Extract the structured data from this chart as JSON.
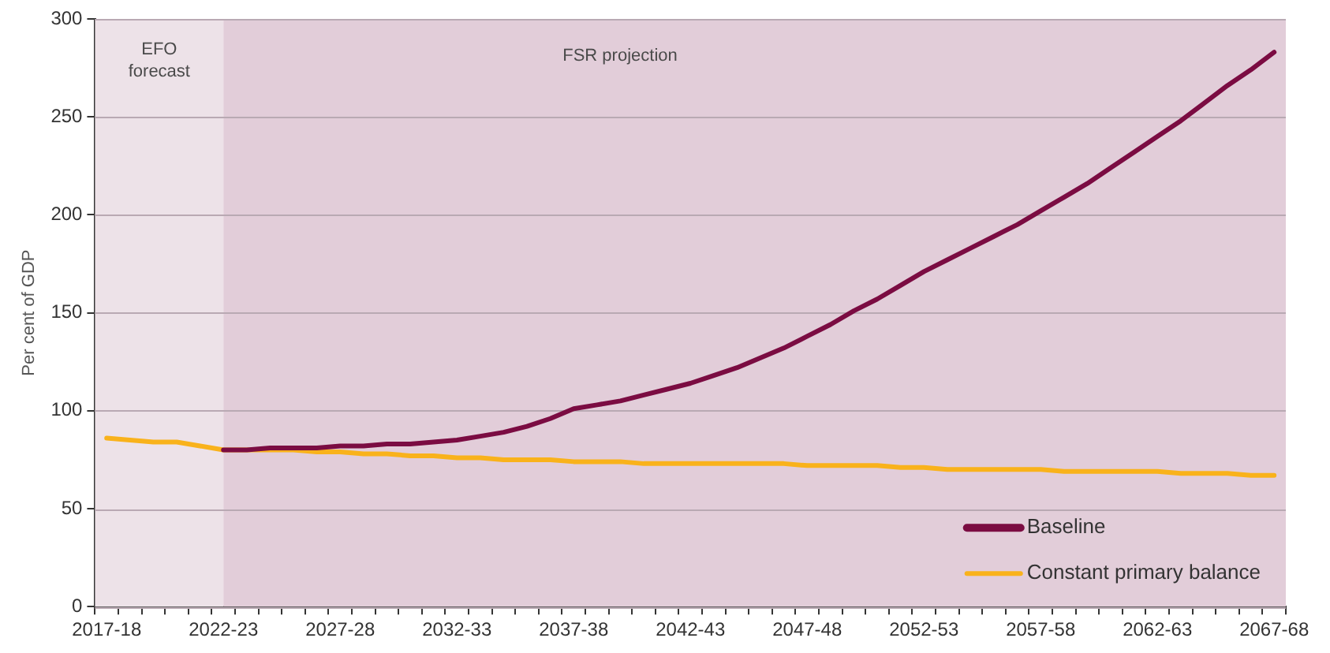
{
  "chart_data": {
    "type": "line",
    "ylabel": "Per cent of GDP",
    "categories": [
      "2017-18",
      null,
      null,
      null,
      null,
      "2022-23",
      null,
      null,
      null,
      null,
      "2027-28",
      null,
      null,
      null,
      null,
      "2032-33",
      null,
      null,
      null,
      null,
      "2037-38",
      null,
      null,
      null,
      null,
      "2042-43",
      null,
      null,
      null,
      null,
      "2047-48",
      null,
      null,
      null,
      null,
      "2052-53",
      null,
      null,
      null,
      null,
      "2057-58",
      null,
      null,
      null,
      null,
      "2062-63",
      null,
      null,
      null,
      null,
      "2067-68"
    ],
    "series": [
      {
        "name": "Baseline",
        "color": "#7b0c42",
        "values": [
          null,
          null,
          null,
          null,
          null,
          80,
          80,
          81,
          81,
          81,
          82,
          82,
          83,
          83,
          84,
          85,
          87,
          89,
          92,
          96,
          101,
          103,
          105,
          108,
          111,
          114,
          118,
          122,
          127,
          132,
          138,
          144,
          151,
          157,
          164,
          171,
          177,
          183,
          189,
          195,
          202,
          209,
          216,
          224,
          232,
          240,
          248,
          257,
          266,
          274,
          283
        ]
      },
      {
        "name": "Constant primary balance",
        "color": "#f9b21b",
        "values": [
          86,
          85,
          84,
          84,
          82,
          80,
          80,
          80,
          80,
          79,
          79,
          78,
          78,
          77,
          77,
          76,
          76,
          75,
          75,
          75,
          74,
          74,
          74,
          73,
          73,
          73,
          73,
          73,
          73,
          73,
          72,
          72,
          72,
          72,
          71,
          71,
          70,
          70,
          70,
          70,
          70,
          69,
          69,
          69,
          69,
          69,
          68,
          68,
          68,
          67,
          67
        ]
      }
    ],
    "ylim": [
      0,
      300
    ],
    "yticks": [
      0,
      50,
      100,
      150,
      200,
      250,
      300
    ],
    "grid": "y",
    "legend": "bottom right",
    "marker": "none",
    "line_style": "solid",
    "bands": [
      {
        "axis": "x",
        "from": "2017-18",
        "to": "2022-23",
        "label": "EFO forecast",
        "color": "#ede2e8"
      },
      {
        "axis": "x",
        "from": "2022-23",
        "to": "2067-68",
        "label": "FSR projection",
        "color": "#e2cdd9"
      }
    ]
  }
}
